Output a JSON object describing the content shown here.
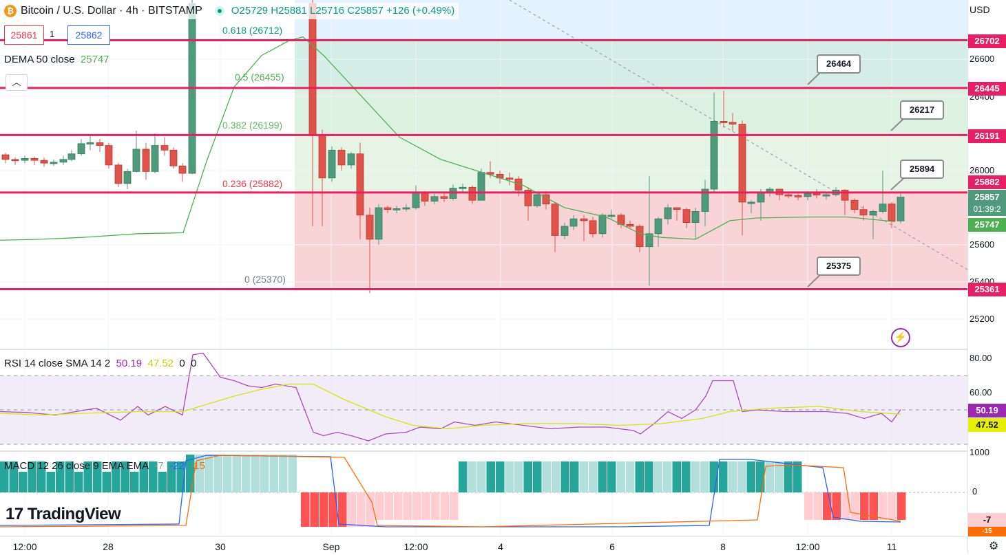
{
  "header": {
    "symbol_title": "Bitcoin / U.S. Dollar · 4h · BITSTAMP",
    "ohlc": "O25729 H25881 L25716 C25857 +126 (+0.49%)",
    "coin_icon": "bitcoin-icon"
  },
  "trade": {
    "bid": "25861",
    "spread": "1",
    "ask": "25862"
  },
  "dema": {
    "label": "DEMA 50 close",
    "value": "25747"
  },
  "rsi_legend": {
    "label": "RSI 14 close SMA 14 2",
    "rsi": "50.19",
    "sma": "47.52",
    "extra1": "0",
    "extra2": "0"
  },
  "macd_legend": {
    "label": "MACD 12 26 close 9 EMA EMA",
    "hist": "-7",
    "macd": "-22",
    "signal": "-15"
  },
  "currency": "USD",
  "fib_labels": [
    {
      "text": "0.618 (26712)",
      "color": "#089981"
    },
    {
      "text": "0.5 (26455)",
      "color": "#4caf50"
    },
    {
      "text": "0.382 (26199)",
      "color": "#66bb6a"
    },
    {
      "text": "0.236 (25882)",
      "color": "#f23645"
    },
    {
      "text": "0 (25370)",
      "color": "#787b86"
    }
  ],
  "callouts": [
    "26464",
    "26217",
    "25894",
    "25375"
  ],
  "price_scale": [
    "26600",
    "26400",
    "26000",
    "25600",
    "25400",
    "25200"
  ],
  "price_tags": {
    "lines": [
      "26702",
      "26445",
      "26191",
      "25882",
      "25361"
    ],
    "last": "25857",
    "countdown": "01:39:2",
    "dema": "25747"
  },
  "rsi_scale": [
    "80.00",
    "60.00"
  ],
  "rsi_tags": {
    "rsi": "50.19",
    "sma": "47.52"
  },
  "macd_scale": [
    "1000",
    "0"
  ],
  "macd_tags": {
    "hist": "-7",
    "extra": "-15"
  },
  "time_axis": [
    "12:00",
    "28",
    "30",
    "Sep",
    "12:00",
    "4",
    "6",
    "8",
    "12:00",
    "11"
  ],
  "brand": "TradingView",
  "colors": {
    "up": "#4f9a7c",
    "down": "#e0534a",
    "line_red": "#e91e63",
    "dema": "#4caf50",
    "rsi": "#9c27b0",
    "rsi_sma": "#d4e600",
    "macd": "#2962ff",
    "signal": "#ff6d00"
  }
}
